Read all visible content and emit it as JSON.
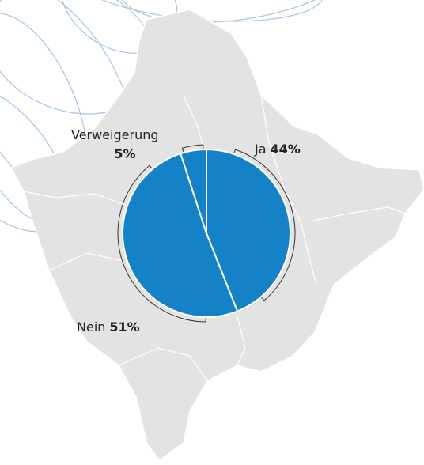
{
  "chart_data": {
    "type": "pie",
    "categories": [
      "Ja",
      "Nein",
      "Verweigerung"
    ],
    "values": [
      44,
      51,
      5
    ],
    "value_labels": [
      "44%",
      "51%",
      "5%"
    ],
    "color": "#1582c8"
  }
}
